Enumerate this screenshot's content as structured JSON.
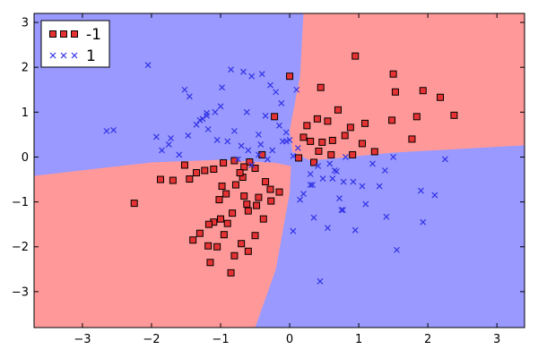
{
  "chart_data": {
    "type": "scatter",
    "title": "",
    "xlabel": "",
    "ylabel": "",
    "xlim": [
      -3.7,
      3.4
    ],
    "ylim": [
      -3.8,
      3.2
    ],
    "xticks": [
      -3,
      -2,
      -1,
      0,
      1,
      2,
      3
    ],
    "yticks": [
      -3,
      -2,
      -1,
      0,
      1,
      2,
      3
    ],
    "xtick_labels": [
      "−3",
      "−2",
      "−1",
      "0",
      "1",
      "2",
      "3"
    ],
    "ytick_labels": [
      "−3",
      "−2",
      "−1",
      "0",
      "1",
      "2",
      "3"
    ],
    "grid": false,
    "legend_position": "top-left",
    "decision_regions": {
      "-1": "#ff9999",
      "1": "#9999ff"
    },
    "series": [
      {
        "name": "-1",
        "marker": "square",
        "color": "#e63232",
        "x": [
          0.95,
          1.5,
          0.45,
          1.53,
          1.93,
          2.18,
          2.38,
          1.84,
          1.09,
          0.88,
          0.7,
          0.55,
          0.4,
          0.25,
          0.3,
          0.47,
          0.62,
          0.8,
          1.05,
          1.23,
          1.48,
          1.77,
          0.91,
          0.6,
          0.42,
          0.2,
          0.13,
          0.35,
          0.0,
          -0.22,
          -0.4,
          -0.58,
          -0.66,
          -0.8,
          -0.96,
          -1.1,
          -1.23,
          -1.35,
          -1.45,
          -1.52,
          -1.69,
          -1.87,
          -2.25,
          -1.1,
          -0.95,
          -0.7,
          -0.5,
          -0.28,
          -0.45,
          -0.62,
          -0.83,
          -1.0,
          -1.17,
          -1.3,
          -1.4,
          -1.05,
          -0.85,
          -1.18,
          -0.9,
          -0.6,
          -0.38,
          -0.15,
          -0.68,
          -0.78,
          -0.92,
          -1.02,
          -0.72,
          -0.5,
          -0.35,
          -0.98,
          -0.66,
          -0.48,
          -0.27,
          -1.15,
          -0.8,
          -0.6
        ],
        "y": [
          2.25,
          1.85,
          1.55,
          1.45,
          1.48,
          1.33,
          0.93,
          0.9,
          0.75,
          0.66,
          1.05,
          0.8,
          0.85,
          0.7,
          0.35,
          0.33,
          0.37,
          0.48,
          0.3,
          0.12,
          0.82,
          0.4,
          0.05,
          0.05,
          0.13,
          0.44,
          -0.02,
          -0.12,
          1.8,
          0.9,
          0.05,
          -0.11,
          -0.22,
          -0.08,
          -0.13,
          -0.27,
          -0.3,
          -0.35,
          -0.49,
          -0.18,
          -0.52,
          -0.5,
          -1.03,
          -1.45,
          -1.73,
          -1.93,
          -1.75,
          -0.72,
          -0.9,
          -1.05,
          -1.25,
          -1.38,
          -1.5,
          -1.7,
          -1.85,
          -2.0,
          -2.58,
          -1.98,
          -1.48,
          -1.2,
          -1.38,
          -0.78,
          -0.45,
          -0.62,
          -0.82,
          -0.95,
          -0.35,
          -0.25,
          -0.55,
          -0.65,
          -0.87,
          -1.08,
          -0.98,
          -2.35,
          -2.2,
          -2.1
        ]
      },
      {
        "name": "1",
        "marker": "x",
        "color": "#3232e6",
        "x": [
          -2.65,
          -2.55,
          -2.05,
          -1.85,
          -1.72,
          -1.52,
          -1.45,
          -1.35,
          -1.2,
          -1.08,
          -0.98,
          -0.85,
          -0.67,
          -0.55,
          -0.4,
          -0.28,
          -0.2,
          -0.12,
          -0.05,
          0.1,
          0.12,
          0.0,
          -0.1,
          -0.25,
          -0.42,
          -0.6,
          -0.75,
          -0.9,
          -1.05,
          -1.18,
          -1.3,
          -1.47,
          -1.6,
          -1.75,
          -1.93,
          -1.2,
          -1.0,
          -0.8,
          -0.62,
          -0.45,
          -0.35,
          -0.15,
          0.05,
          0.15,
          0.2,
          0.33,
          0.48,
          0.62,
          0.78,
          0.92,
          1.05,
          1.3,
          1.5,
          1.55,
          1.9,
          2.1,
          2.25,
          1.2,
          1.1,
          0.95,
          0.75,
          0.55,
          0.35,
          0.05,
          -0.05,
          0.3,
          0.41,
          0.58,
          0.72,
          0.77,
          1.4,
          1.93,
          0.65,
          0.3,
          -0.32,
          -0.45,
          -0.55,
          -0.7,
          -1.26,
          0.44,
          0.81,
          0.68,
          1.38
        ],
        "y": [
          0.58,
          0.6,
          2.05,
          0.15,
          0.42,
          1.5,
          1.35,
          0.72,
          0.98,
          1.0,
          1.55,
          1.95,
          1.9,
          1.8,
          1.85,
          1.6,
          1.45,
          1.2,
          0.55,
          1.5,
          0.2,
          0.38,
          0.35,
          0.15,
          0.28,
          0.15,
          -0.05,
          0.35,
          0.38,
          0.62,
          0.82,
          0.48,
          0.05,
          0.28,
          0.45,
          0.92,
          1.13,
          0.58,
          1.0,
          0.5,
          0.92,
          0.7,
          0.02,
          -0.95,
          -0.82,
          -0.62,
          -0.48,
          -0.48,
          -0.55,
          -0.55,
          -0.65,
          -0.65,
          0.0,
          -2.07,
          -0.75,
          -0.85,
          -0.05,
          -0.15,
          -1.05,
          -1.63,
          -1.18,
          -1.58,
          -1.35,
          -1.65,
          0.35,
          -0.38,
          -0.2,
          -0.15,
          -0.92,
          -1.18,
          -1.33,
          -1.45,
          -0.3,
          -0.62,
          -0.05,
          0.05,
          -0.18,
          0.25,
          0.85,
          -2.77,
          -0.0,
          -0.32,
          -0.3
        ]
      }
    ]
  }
}
